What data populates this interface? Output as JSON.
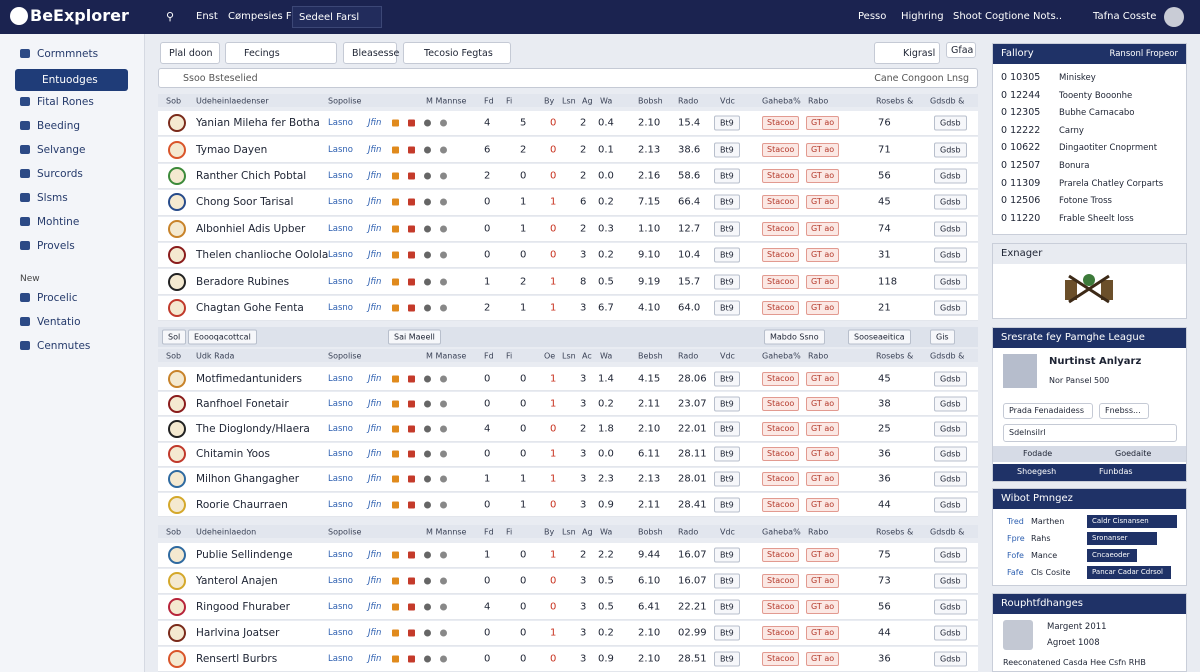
{
  "topbar": {
    "logo": "BeExplorer",
    "nav": [
      "Enst",
      "Cømpesies Fsa"
    ],
    "search": "Sedeel Farsl",
    "right": [
      "Pesso",
      "Highring",
      "Shoot Cogtione Nots..",
      "Tafna Cosste"
    ]
  },
  "sidebar": {
    "items": [
      "Cormmnets",
      "Entuodges",
      "Fital Rones",
      "Beeding",
      "Selvange",
      "Surcords",
      "Slsms",
      "Mohtine",
      "Provels"
    ],
    "section": "New",
    "items2": [
      "Procelic",
      "Ventatio",
      "Cenmutes"
    ]
  },
  "toolbar": {
    "buttons": [
      "Plal doon",
      "Fecings",
      "Bleasesse",
      "Tecosio Fegtas"
    ],
    "right": [
      "Kigrasl",
      "Gfaa"
    ],
    "search": "Ssoo Bsteselied",
    "sort": "Cane Congoon Lnsg"
  },
  "row_labels": {
    "link": "Lasno",
    "tag": "Jfin",
    "btn": "Bt9",
    "pill1": "Stacoo",
    "pill2": "GT ao",
    "action": "Gdsb"
  },
  "separator": [
    "Sol",
    "Eoooqacottcal",
    "Sai Maeell",
    "Mabdo Ssno",
    "Sooseaeitica",
    "Gis"
  ],
  "groups": [
    {
      "header": [
        "Sob",
        "Udeheinlaedenser",
        "Sopolise",
        "M Mannse",
        "Fd",
        "Fi",
        "By",
        "Lsn",
        "Ag",
        "Wa",
        "Bobsh",
        "Rado",
        "Vdc",
        "Gaheba%",
        "Rabo",
        "Rosebs &",
        "Gdsdb &"
      ],
      "rows": [
        {
          "name": "Yanian Mileha fer Botha",
          "values": [
            "4",
            "5",
            "0",
            "2",
            "0.4",
            "2.10",
            "15.4",
            "76"
          ]
        },
        {
          "name": "Tymao Dayen",
          "values": [
            "6",
            "2",
            "0",
            "2",
            "0.1",
            "2.13",
            "38.6",
            "71"
          ]
        },
        {
          "name": "Ranther Chich Pobtal",
          "values": [
            "2",
            "0",
            "0",
            "2",
            "0.0",
            "2.16",
            "58.6",
            "56"
          ]
        },
        {
          "name": "Chong Soor Tarisal",
          "values": [
            "0",
            "1",
            "1",
            "6",
            "0.2",
            "7.15",
            "66.4",
            "45"
          ]
        },
        {
          "name": "Albonhiel Adis Upber",
          "values": [
            "0",
            "1",
            "0",
            "2",
            "0.3",
            "1.10",
            "12.7",
            "74"
          ]
        },
        {
          "name": "Thelen chanlioche Oolola",
          "values": [
            "0",
            "0",
            "0",
            "3",
            "0.2",
            "9.10",
            "10.4",
            "31"
          ]
        },
        {
          "name": "Beradore Rubines",
          "values": [
            "1",
            "2",
            "1",
            "8",
            "0.5",
            "9.19",
            "15.7",
            "118"
          ]
        },
        {
          "name": "Chagtan Gohe Fenta",
          "values": [
            "2",
            "1",
            "1",
            "3",
            "6.7",
            "4.10",
            "64.0",
            "21"
          ]
        }
      ]
    },
    {
      "header": [
        "Sob",
        "Udk Rada",
        "Sopolise",
        "M Manase",
        "Fd",
        "Fi",
        "Oe",
        "Lsn",
        "Ac",
        "Wa",
        "Bebsh",
        "Rado",
        "Vdc",
        "Gaheba%",
        "Rabo",
        "Rosebs &",
        "Gdsdb &"
      ],
      "rows": [
        {
          "name": "Motfimedantuniders",
          "values": [
            "0",
            "0",
            "1",
            "3",
            "1.4",
            "4.15",
            "28.06",
            "45"
          ]
        },
        {
          "name": "Ranfhoel Fonetair",
          "values": [
            "0",
            "0",
            "1",
            "3",
            "0.2",
            "2.11",
            "23.07",
            "38"
          ]
        },
        {
          "name": "The Dioglondy/Hlaera",
          "values": [
            "4",
            "0",
            "0",
            "2",
            "1.8",
            "2.10",
            "22.01",
            "25"
          ]
        },
        {
          "name": "Chitamin Yoos",
          "values": [
            "0",
            "0",
            "1",
            "3",
            "0.0",
            "6.11",
            "28.11",
            "36"
          ]
        },
        {
          "name": "Milhon Ghangagher",
          "values": [
            "1",
            "1",
            "1",
            "3",
            "2.3",
            "2.13",
            "28.01",
            "36"
          ]
        },
        {
          "name": "Roorie Chaurraen",
          "values": [
            "0",
            "1",
            "0",
            "3",
            "0.9",
            "2.11",
            "28.41",
            "44"
          ]
        }
      ]
    },
    {
      "header": [
        "Sob",
        "Udeheinlaedon",
        "Sopolise",
        "M Mannse",
        "Fd",
        "Fi",
        "By",
        "Lsn",
        "Ag",
        "Wa",
        "Bobsh",
        "Rado",
        "Vdc",
        "Gaheba%",
        "Rabo",
        "Rosebs &",
        "Gdsdb &"
      ],
      "rows": [
        {
          "name": "Publie Sellindenge",
          "values": [
            "1",
            "0",
            "1",
            "2",
            "2.2",
            "9.44",
            "16.07",
            "75"
          ]
        },
        {
          "name": "Yanterol Anajen",
          "values": [
            "0",
            "0",
            "0",
            "3",
            "0.5",
            "6.10",
            "16.07",
            "73"
          ]
        },
        {
          "name": "Ringood Fhuraber",
          "values": [
            "4",
            "0",
            "0",
            "3",
            "0.5",
            "6.41",
            "22.21",
            "56"
          ]
        },
        {
          "name": "Harlvina Joatser",
          "values": [
            "0",
            "0",
            "1",
            "3",
            "0.2",
            "2.10",
            "02.99",
            "44"
          ]
        },
        {
          "name": "Rensertl Burbrs",
          "values": [
            "0",
            "0",
            "0",
            "3",
            "0.9",
            "2.10",
            "28.51",
            "36"
          ]
        }
      ]
    }
  ],
  "panels": {
    "fallory": {
      "title": "Fallory",
      "action": "Ransonl Fropeor",
      "items": [
        [
          "0 10305",
          "Miniskey"
        ],
        [
          "0 12244",
          "Tooenty Booonhe"
        ],
        [
          "0 12305",
          "Bubhe Carnacabo"
        ],
        [
          "0 12222",
          "Carny"
        ],
        [
          "0 10622",
          "Dingaotiter Cnoprment"
        ],
        [
          "0 12507",
          "Bonura"
        ],
        [
          "0 11309",
          "Prarela Chatley Corparts"
        ],
        [
          "0 12506",
          "Fotone Tross"
        ],
        [
          "0 11220",
          "Frable Sheelt loss"
        ]
      ]
    },
    "exnager": {
      "title": "Exnager"
    },
    "league": {
      "title": "Sresrate fey Pamghe League",
      "name": "Nurtinst Anlyarz",
      "sub": "Nor Pansel 500",
      "buttons": [
        "Prada Fenadaidess",
        "Fnebss..."
      ],
      "input": "Sdelnsilrl",
      "tabs": [
        "Fodade",
        "Goedaite"
      ],
      "footer": [
        "Shoegesh",
        "Funbdas"
      ]
    },
    "wibot": {
      "title": "Wibot Pmngez",
      "rows": [
        [
          "Tred",
          "Marthen",
          "Caldr Cisnansen"
        ],
        [
          "Fpre",
          "Rahs",
          "Sronanser"
        ],
        [
          "Fofe",
          "Mance",
          "Cncaeoder"
        ],
        [
          "Fafe",
          "Cls Cosite",
          "Pancar Cadar Cdrsol"
        ]
      ]
    },
    "rouph": {
      "title": "Rouphtfdhanges",
      "name": "Margent 2011",
      "sub": "Agroet 1008",
      "footer": "Reeconatened Casda Hee Csfn RHB"
    }
  }
}
